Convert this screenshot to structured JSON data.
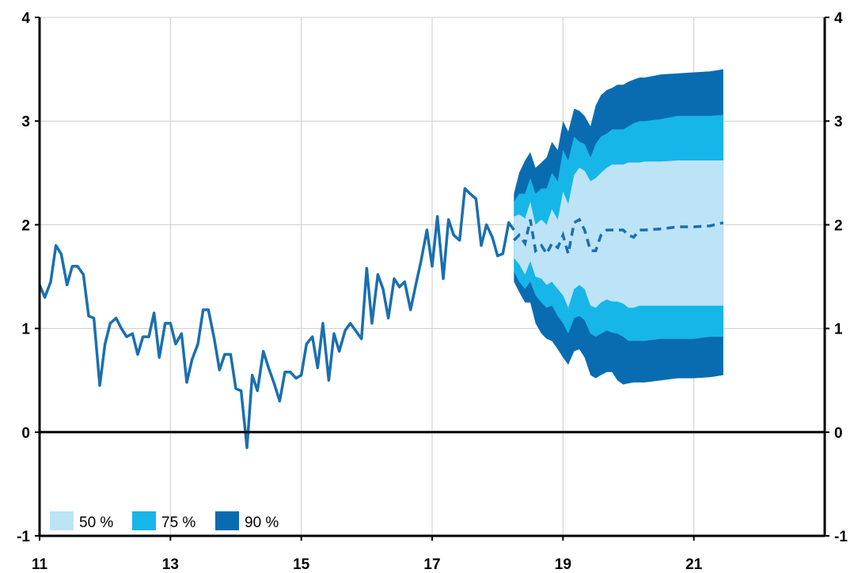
{
  "chart_data": {
    "type": "area",
    "title": "",
    "xlabel": "",
    "ylabel": "",
    "xlim": [
      11,
      23
    ],
    "ylim": [
      -1,
      4
    ],
    "x_ticks": [
      11,
      13,
      15,
      17,
      19,
      21
    ],
    "x_tick_labels": [
      "11",
      "13",
      "15",
      "17",
      "19",
      "21"
    ],
    "y_ticks": [
      -1,
      0,
      1,
      2,
      3,
      4
    ],
    "y_tick_labels": [
      "-1",
      "0",
      "1",
      "2",
      "3",
      "4"
    ],
    "grid": true,
    "legend_position": "bottom-left",
    "colors": {
      "line": "#1a6faf",
      "band50": "#bde3f7",
      "band75": "#17b6e8",
      "band90": "#0a6cb0",
      "grid": "#cccccc",
      "axis": "#000000"
    },
    "legend": [
      {
        "label": "50 %",
        "color": "#bde3f7"
      },
      {
        "label": "75 %",
        "color": "#17b6e8"
      },
      {
        "label": "90 %",
        "color": "#0a6cb0"
      }
    ],
    "history": {
      "x": [
        11.0,
        11.08,
        11.17,
        11.25,
        11.33,
        11.42,
        11.5,
        11.58,
        11.67,
        11.75,
        11.83,
        11.92,
        12.0,
        12.08,
        12.17,
        12.25,
        12.33,
        12.42,
        12.5,
        12.58,
        12.67,
        12.75,
        12.83,
        12.92,
        13.0,
        13.08,
        13.17,
        13.25,
        13.33,
        13.42,
        13.5,
        13.58,
        13.67,
        13.75,
        13.83,
        13.92,
        14.0,
        14.08,
        14.17,
        14.25,
        14.33,
        14.42,
        14.5,
        14.58,
        14.67,
        14.75,
        14.83,
        14.92,
        15.0,
        15.08,
        15.17,
        15.25,
        15.33,
        15.42,
        15.5,
        15.58,
        15.67,
        15.75,
        15.83,
        15.92,
        16.0,
        16.08,
        16.17,
        16.25,
        16.33,
        16.42,
        16.5,
        16.58,
        16.67,
        16.75,
        16.83,
        16.92,
        17.0,
        17.08,
        17.17,
        17.25,
        17.33,
        17.42,
        17.5,
        17.58,
        17.67,
        17.75,
        17.83,
        17.92,
        18.0,
        18.08,
        18.17,
        18.25
      ],
      "y": [
        1.42,
        1.3,
        1.45,
        1.8,
        1.72,
        1.42,
        1.6,
        1.6,
        1.52,
        1.12,
        1.1,
        0.45,
        0.85,
        1.05,
        1.1,
        1.0,
        0.92,
        0.95,
        0.75,
        0.92,
        0.92,
        1.15,
        0.72,
        1.05,
        1.05,
        0.85,
        0.95,
        0.48,
        0.7,
        0.85,
        1.18,
        1.18,
        0.9,
        0.6,
        0.75,
        0.75,
        0.42,
        0.4,
        -0.15,
        0.55,
        0.4,
        0.78,
        0.62,
        0.48,
        0.3,
        0.58,
        0.58,
        0.52,
        0.55,
        0.85,
        0.92,
        0.62,
        1.05,
        0.5,
        0.95,
        0.78,
        0.98,
        1.05,
        0.98,
        0.9,
        1.58,
        1.05,
        1.52,
        1.38,
        1.1,
        1.48,
        1.4,
        1.45,
        1.18,
        1.42,
        1.65,
        1.95,
        1.6,
        2.08,
        1.48,
        2.05,
        1.9,
        1.85,
        2.35,
        2.3,
        2.25,
        1.8,
        2.0,
        1.88,
        1.7,
        1.72,
        2.02,
        1.95
      ]
    },
    "forecast": {
      "x": [
        18.25,
        18.33,
        18.42,
        18.5,
        18.58,
        18.67,
        18.75,
        18.83,
        18.92,
        19.0,
        19.08,
        19.17,
        19.25,
        19.33,
        19.42,
        19.5,
        19.58,
        19.67,
        19.75,
        19.83,
        19.92,
        20.0,
        20.08,
        20.17,
        20.25,
        20.5,
        20.75,
        21.0,
        21.25,
        21.45
      ],
      "median": [
        1.85,
        1.9,
        1.82,
        2.05,
        1.75,
        1.8,
        1.72,
        1.82,
        1.78,
        1.9,
        1.72,
        2.02,
        2.05,
        1.95,
        1.75,
        1.75,
        1.9,
        1.95,
        1.95,
        1.95,
        1.95,
        1.9,
        1.88,
        1.95,
        1.95,
        1.96,
        1.98,
        1.98,
        1.99,
        2.02
      ],
      "band50": {
        "upper": [
          2.08,
          2.1,
          2.06,
          2.22,
          2.0,
          2.05,
          2.0,
          2.15,
          2.05,
          2.32,
          2.2,
          2.48,
          2.55,
          2.52,
          2.42,
          2.45,
          2.5,
          2.55,
          2.58,
          2.58,
          2.58,
          2.6,
          2.6,
          2.6,
          2.61,
          2.61,
          2.62,
          2.62,
          2.62,
          2.62
        ],
        "lower": [
          1.68,
          1.62,
          1.52,
          1.65,
          1.5,
          1.48,
          1.42,
          1.45,
          1.38,
          1.32,
          1.2,
          1.38,
          1.42,
          1.38,
          1.22,
          1.2,
          1.25,
          1.28,
          1.26,
          1.26,
          1.24,
          1.2,
          1.2,
          1.22,
          1.22,
          1.22,
          1.22,
          1.22,
          1.22,
          1.22
        ]
      },
      "band75": {
        "upper": [
          2.22,
          2.3,
          2.3,
          2.45,
          2.3,
          2.35,
          2.35,
          2.5,
          2.42,
          2.72,
          2.62,
          2.85,
          2.8,
          2.78,
          2.65,
          2.78,
          2.85,
          2.88,
          2.92,
          2.92,
          2.92,
          2.95,
          2.98,
          3.0,
          3.0,
          3.02,
          3.05,
          3.05,
          3.05,
          3.06
        ],
        "lower": [
          1.55,
          1.45,
          1.38,
          1.45,
          1.32,
          1.25,
          1.2,
          1.22,
          1.12,
          1.05,
          0.95,
          1.1,
          1.12,
          1.08,
          0.95,
          0.92,
          0.95,
          0.98,
          0.96,
          0.95,
          0.92,
          0.88,
          0.88,
          0.88,
          0.88,
          0.9,
          0.9,
          0.9,
          0.92,
          0.92
        ]
      },
      "band90": {
        "upper": [
          2.3,
          2.5,
          2.62,
          2.7,
          2.55,
          2.6,
          2.65,
          2.8,
          2.72,
          3.0,
          2.9,
          3.12,
          3.1,
          3.05,
          2.95,
          3.15,
          3.25,
          3.3,
          3.32,
          3.35,
          3.35,
          3.38,
          3.4,
          3.42,
          3.42,
          3.45,
          3.46,
          3.47,
          3.48,
          3.5
        ],
        "lower": [
          1.45,
          1.35,
          1.25,
          1.25,
          1.05,
          0.95,
          0.9,
          0.88,
          0.8,
          0.72,
          0.65,
          0.78,
          0.8,
          0.72,
          0.55,
          0.52,
          0.55,
          0.58,
          0.58,
          0.5,
          0.46,
          0.47,
          0.48,
          0.48,
          0.48,
          0.5,
          0.52,
          0.52,
          0.53,
          0.55
        ]
      }
    }
  }
}
